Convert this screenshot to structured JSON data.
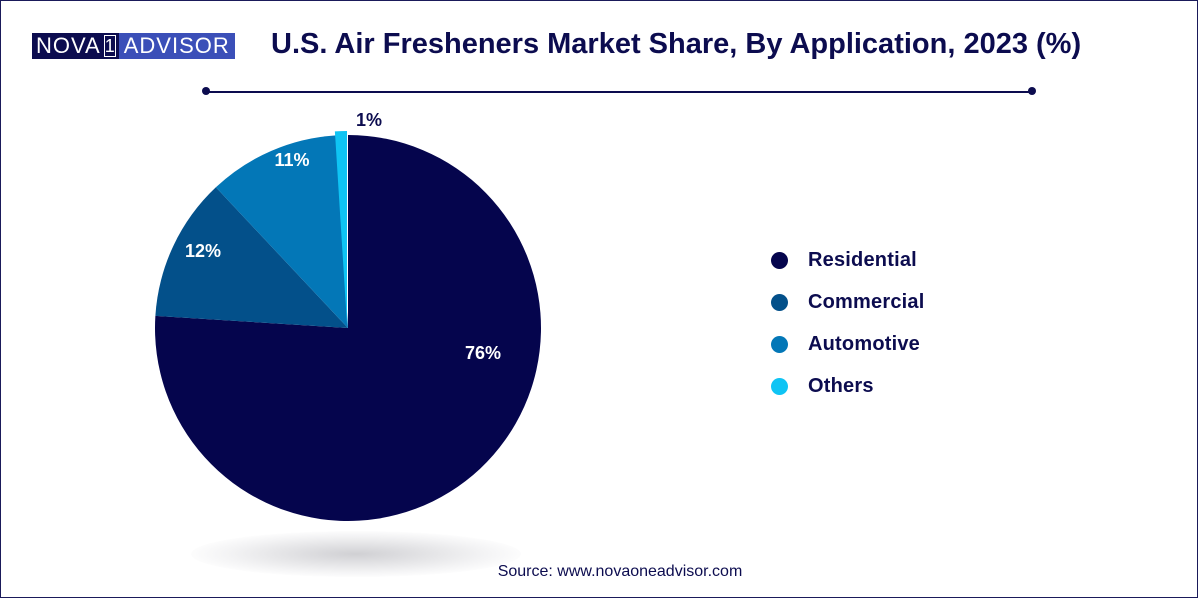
{
  "logo": {
    "left": "NOVA",
    "mid": "1",
    "right": "ADVISOR"
  },
  "title": "U.S. Air Fresheners Market Share, By Application, 2023 (%)",
  "source": "Source: www.novaoneadvisor.com",
  "colors": {
    "Residential": "#05054d",
    "Commercial": "#03508a",
    "Automotive": "#0377b7",
    "Others": "#0fc4f4",
    "text": "#0c0c4f"
  },
  "chart_data": {
    "type": "pie",
    "title": "U.S. Air Fresheners Market Share, By Application, 2023 (%)",
    "legend_position": "right",
    "slices": [
      {
        "label": "Residential",
        "value": 76,
        "display": "76%"
      },
      {
        "label": "Commercial",
        "value": 12,
        "display": "12%"
      },
      {
        "label": "Automotive",
        "value": 11,
        "display": "11%"
      },
      {
        "label": "Others",
        "value": 1,
        "display": "1%"
      }
    ]
  }
}
